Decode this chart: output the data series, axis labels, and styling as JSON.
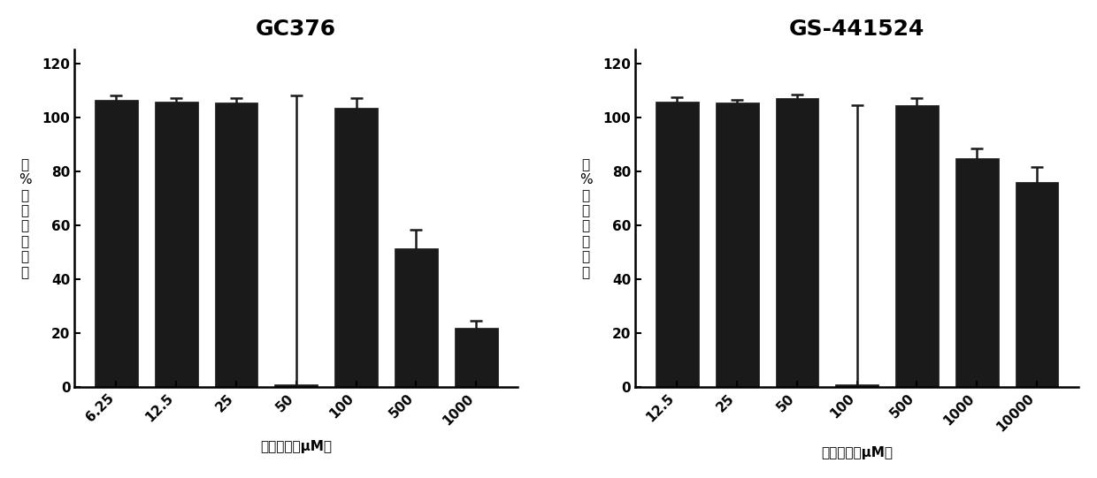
{
  "gc376": {
    "title": "GC376",
    "categories": [
      "6.25",
      "12.5",
      "25",
      "50",
      "100",
      "500",
      "1000"
    ],
    "values": [
      106.5,
      106.0,
      105.5,
      1.0,
      103.5,
      51.5,
      22.0
    ],
    "errors": [
      1.5,
      1.2,
      1.5,
      107.0,
      3.5,
      7.0,
      2.5
    ],
    "xlabel": "药物浓度（μM）",
    "ylabel": "（%）细胞存活率",
    "ylim": [
      0,
      125
    ],
    "yticks": [
      0,
      20,
      40,
      60,
      80,
      100,
      120
    ]
  },
  "gs441524": {
    "title": "GS-441524",
    "categories": [
      "12.5",
      "25",
      "50",
      "100",
      "500",
      "1000",
      "10000"
    ],
    "values": [
      106.0,
      105.5,
      107.0,
      1.0,
      104.5,
      85.0,
      76.0
    ],
    "errors": [
      1.5,
      1.0,
      1.5,
      103.5,
      2.5,
      3.5,
      5.5
    ],
    "xlabel": "药物浓度（μM）",
    "ylabel": "（%）细胞存活率",
    "ylim": [
      0,
      125
    ],
    "yticks": [
      0,
      20,
      40,
      60,
      80,
      100,
      120
    ]
  },
  "bar_color": "#1a1a1a",
  "error_color": "#1a1a1a",
  "background_color": "#ffffff",
  "title_fontsize": 18,
  "axis_label_fontsize": 11,
  "tick_fontsize": 11
}
